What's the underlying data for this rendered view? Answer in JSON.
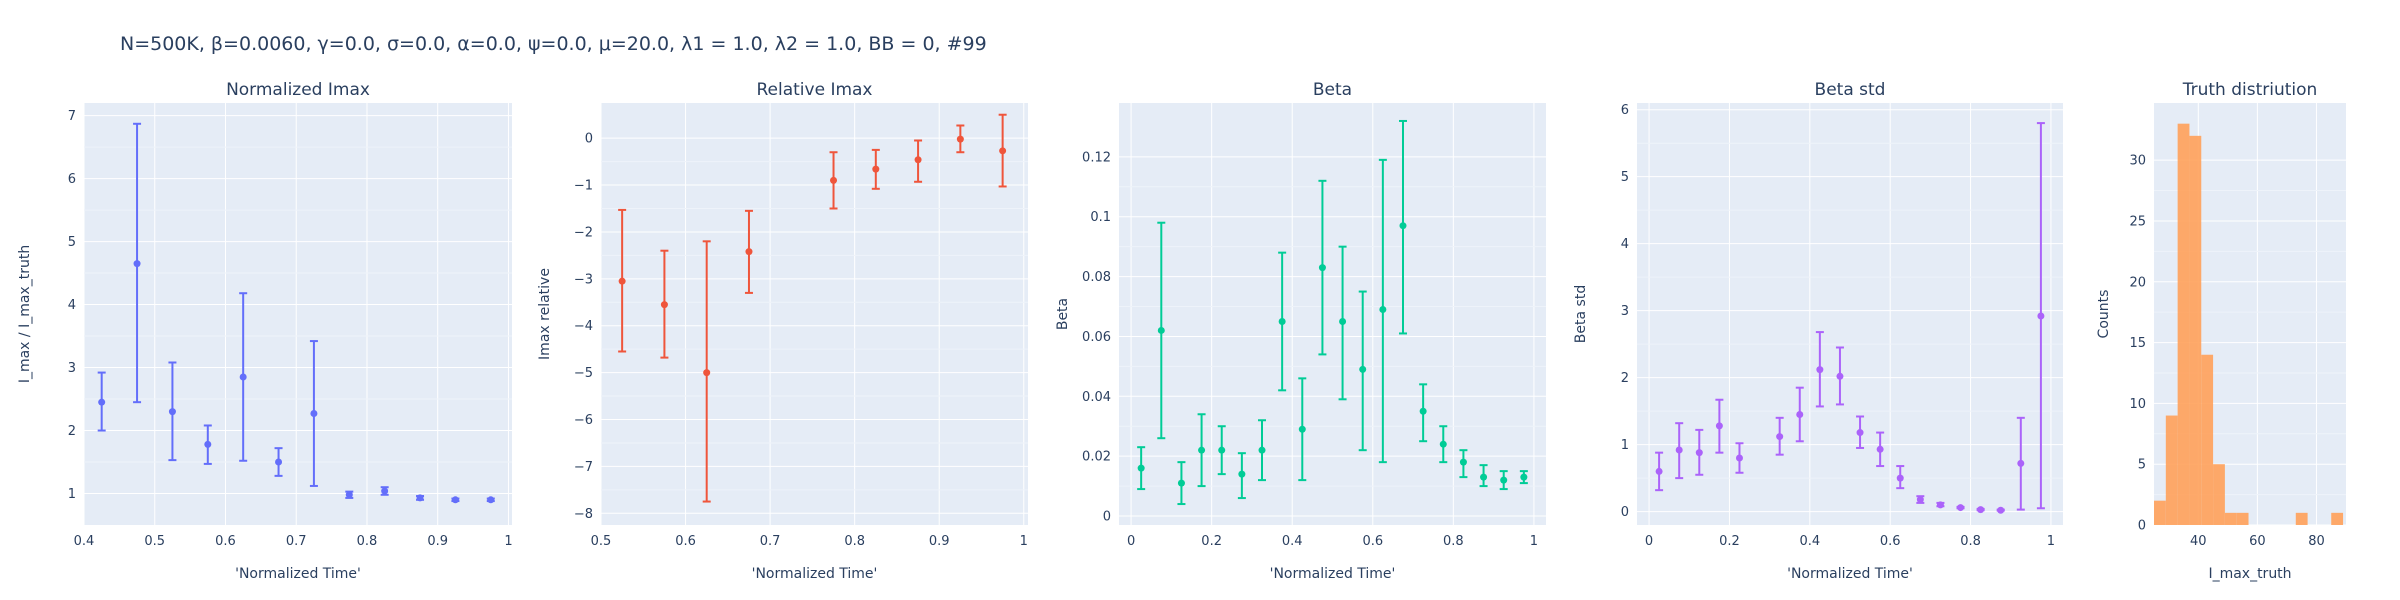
{
  "figure_title": "N=500K, β=0.0060, γ=0.0, σ=0.0,  α=0.0, ψ=0.0, μ=20.0, λ1 = 1.0, λ2 = 1.0, BB = 0, #99",
  "chart_data": [
    {
      "type": "scatter",
      "title": "Normalized Imax",
      "xlabel": "'Normalized Time'",
      "ylabel": "I_max / I_max_truth",
      "color": "#636efa",
      "xlim": [
        0.4,
        1.005
      ],
      "ylim": [
        0.5,
        7.2
      ],
      "xticks": [
        0.4,
        0.5,
        0.6,
        0.7,
        0.8,
        0.9,
        1
      ],
      "xtick_labels": [
        "0.4",
        "0.5",
        "0.6",
        "0.7",
        "0.8",
        "0.9",
        "1"
      ],
      "yticks": [
        1,
        2,
        3,
        4,
        5,
        6,
        7
      ],
      "ytick_labels": [
        "1",
        "2",
        "3",
        "4",
        "5",
        "6",
        "7"
      ],
      "grid": true,
      "points": [
        {
          "x": 0.425,
          "y": 2.45,
          "lo": 2.0,
          "hi": 2.92
        },
        {
          "x": 0.475,
          "y": 4.65,
          "lo": 2.45,
          "hi": 6.87
        },
        {
          "x": 0.525,
          "y": 2.3,
          "lo": 1.53,
          "hi": 3.08
        },
        {
          "x": 0.575,
          "y": 1.78,
          "lo": 1.47,
          "hi": 2.08
        },
        {
          "x": 0.625,
          "y": 2.85,
          "lo": 1.52,
          "hi": 4.18
        },
        {
          "x": 0.675,
          "y": 1.5,
          "lo": 1.28,
          "hi": 1.72
        },
        {
          "x": 0.725,
          "y": 2.27,
          "lo": 1.12,
          "hi": 3.42
        },
        {
          "x": 0.775,
          "y": 0.98,
          "lo": 0.93,
          "hi": 1.03
        },
        {
          "x": 0.825,
          "y": 1.04,
          "lo": 0.98,
          "hi": 1.1
        },
        {
          "x": 0.875,
          "y": 0.93,
          "lo": 0.9,
          "hi": 0.96
        },
        {
          "x": 0.925,
          "y": 0.9,
          "lo": 0.88,
          "hi": 0.92
        },
        {
          "x": 0.975,
          "y": 0.9,
          "lo": 0.88,
          "hi": 0.92
        }
      ]
    },
    {
      "type": "scatter",
      "title": "Relative Imax",
      "xlabel": "'Normalized Time'",
      "ylabel": "Imax relative",
      "color": "#ef553b",
      "xlim": [
        0.5,
        1.005
      ],
      "ylim": [
        -8.25,
        0.75
      ],
      "xticks": [
        0.5,
        0.6,
        0.7,
        0.8,
        0.9,
        1
      ],
      "xtick_labels": [
        "0.5",
        "0.6",
        "0.7",
        "0.8",
        "0.9",
        "1"
      ],
      "yticks": [
        -8,
        -7,
        -6,
        -5,
        -4,
        -3,
        -2,
        -1,
        0
      ],
      "ytick_labels": [
        "−8",
        "−7",
        "−6",
        "−5",
        "−4",
        "−3",
        "−2",
        "−1",
        "0"
      ],
      "grid": true,
      "points": [
        {
          "x": 0.525,
          "y": -3.05,
          "lo": -4.55,
          "hi": -1.53
        },
        {
          "x": 0.575,
          "y": -3.55,
          "lo": -4.68,
          "hi": -2.4
        },
        {
          "x": 0.625,
          "y": -5.0,
          "lo": -7.75,
          "hi": -2.2
        },
        {
          "x": 0.675,
          "y": -2.42,
          "lo": -3.3,
          "hi": -1.55
        },
        {
          "x": 0.775,
          "y": -0.9,
          "lo": -1.5,
          "hi": -0.3
        },
        {
          "x": 0.825,
          "y": -0.66,
          "lo": -1.08,
          "hi": -0.25
        },
        {
          "x": 0.875,
          "y": -0.46,
          "lo": -0.93,
          "hi": -0.05
        },
        {
          "x": 0.925,
          "y": -0.02,
          "lo": -0.3,
          "hi": 0.27
        },
        {
          "x": 0.975,
          "y": -0.27,
          "lo": -1.03,
          "hi": 0.5
        }
      ]
    },
    {
      "type": "scatter",
      "title": "Beta",
      "xlabel": "'Normalized Time'",
      "ylabel": "Beta",
      "color": "#00cc96",
      "xlim": [
        -0.03,
        1.03
      ],
      "ylim": [
        -0.003,
        0.138
      ],
      "xticks": [
        0,
        0.2,
        0.4,
        0.6,
        0.8,
        1
      ],
      "xtick_labels": [
        "0",
        "0.2",
        "0.4",
        "0.6",
        "0.8",
        "1"
      ],
      "yticks": [
        0,
        0.02,
        0.04,
        0.06,
        0.08,
        0.1,
        0.12
      ],
      "ytick_labels": [
        "0",
        "0.02",
        "0.04",
        "0.06",
        "0.08",
        "0.1",
        "0.12"
      ],
      "grid": true,
      "points": [
        {
          "x": 0.025,
          "y": 0.016,
          "lo": 0.009,
          "hi": 0.023
        },
        {
          "x": 0.075,
          "y": 0.062,
          "lo": 0.026,
          "hi": 0.098
        },
        {
          "x": 0.125,
          "y": 0.011,
          "lo": 0.004,
          "hi": 0.018
        },
        {
          "x": 0.175,
          "y": 0.022,
          "lo": 0.01,
          "hi": 0.034
        },
        {
          "x": 0.225,
          "y": 0.022,
          "lo": 0.014,
          "hi": 0.03
        },
        {
          "x": 0.275,
          "y": 0.014,
          "lo": 0.006,
          "hi": 0.021
        },
        {
          "x": 0.325,
          "y": 0.022,
          "lo": 0.012,
          "hi": 0.032
        },
        {
          "x": 0.375,
          "y": 0.065,
          "lo": 0.042,
          "hi": 0.088
        },
        {
          "x": 0.425,
          "y": 0.029,
          "lo": 0.012,
          "hi": 0.046
        },
        {
          "x": 0.475,
          "y": 0.083,
          "lo": 0.054,
          "hi": 0.112
        },
        {
          "x": 0.525,
          "y": 0.065,
          "lo": 0.039,
          "hi": 0.09
        },
        {
          "x": 0.575,
          "y": 0.049,
          "lo": 0.022,
          "hi": 0.075
        },
        {
          "x": 0.625,
          "y": 0.069,
          "lo": 0.018,
          "hi": 0.119
        },
        {
          "x": 0.675,
          "y": 0.097,
          "lo": 0.061,
          "hi": 0.132
        },
        {
          "x": 0.725,
          "y": 0.035,
          "lo": 0.025,
          "hi": 0.044
        },
        {
          "x": 0.775,
          "y": 0.024,
          "lo": 0.018,
          "hi": 0.03
        },
        {
          "x": 0.825,
          "y": 0.018,
          "lo": 0.013,
          "hi": 0.022
        },
        {
          "x": 0.875,
          "y": 0.013,
          "lo": 0.01,
          "hi": 0.017
        },
        {
          "x": 0.925,
          "y": 0.012,
          "lo": 0.009,
          "hi": 0.015
        },
        {
          "x": 0.975,
          "y": 0.013,
          "lo": 0.011,
          "hi": 0.015
        }
      ]
    },
    {
      "type": "scatter",
      "title": "Beta std",
      "xlabel": "'Normalized Time'",
      "ylabel": "Beta std",
      "color": "#ab63fa",
      "xlim": [
        -0.03,
        1.03
      ],
      "ylim": [
        -0.2,
        6.1
      ],
      "xticks": [
        0,
        0.2,
        0.4,
        0.6,
        0.8,
        1
      ],
      "xtick_labels": [
        "0",
        "0.2",
        "0.4",
        "0.6",
        "0.8",
        "1"
      ],
      "yticks": [
        0,
        1,
        2,
        3,
        4,
        5,
        6
      ],
      "ytick_labels": [
        "0",
        "1",
        "2",
        "3",
        "4",
        "5",
        "6"
      ],
      "grid": true,
      "points": [
        {
          "x": 0.025,
          "y": 0.6,
          "lo": 0.32,
          "hi": 0.88
        },
        {
          "x": 0.075,
          "y": 0.92,
          "lo": 0.5,
          "hi": 1.32
        },
        {
          "x": 0.125,
          "y": 0.88,
          "lo": 0.55,
          "hi": 1.22
        },
        {
          "x": 0.175,
          "y": 1.28,
          "lo": 0.88,
          "hi": 1.67
        },
        {
          "x": 0.225,
          "y": 0.8,
          "lo": 0.58,
          "hi": 1.02
        },
        {
          "x": 0.325,
          "y": 1.12,
          "lo": 0.85,
          "hi": 1.4
        },
        {
          "x": 0.375,
          "y": 1.45,
          "lo": 1.05,
          "hi": 1.85
        },
        {
          "x": 0.425,
          "y": 2.12,
          "lo": 1.57,
          "hi": 2.68
        },
        {
          "x": 0.475,
          "y": 2.02,
          "lo": 1.6,
          "hi": 2.45
        },
        {
          "x": 0.525,
          "y": 1.18,
          "lo": 0.95,
          "hi": 1.42
        },
        {
          "x": 0.575,
          "y": 0.93,
          "lo": 0.68,
          "hi": 1.18
        },
        {
          "x": 0.625,
          "y": 0.5,
          "lo": 0.35,
          "hi": 0.68
        },
        {
          "x": 0.675,
          "y": 0.18,
          "lo": 0.13,
          "hi": 0.23
        },
        {
          "x": 0.725,
          "y": 0.1,
          "lo": 0.08,
          "hi": 0.13
        },
        {
          "x": 0.775,
          "y": 0.06,
          "lo": 0.05,
          "hi": 0.07
        },
        {
          "x": 0.825,
          "y": 0.03,
          "lo": 0.02,
          "hi": 0.04
        },
        {
          "x": 0.875,
          "y": 0.02,
          "lo": 0.015,
          "hi": 0.03
        },
        {
          "x": 0.925,
          "y": 0.72,
          "lo": 0.03,
          "hi": 1.4
        },
        {
          "x": 0.975,
          "y": 2.92,
          "lo": 0.05,
          "hi": 5.8
        }
      ]
    },
    {
      "type": "bar",
      "title": "Truth distriution",
      "xlabel": "I_max_truth",
      "ylabel": "Counts",
      "color": "#ffa15a",
      "xlim": [
        25,
        90
      ],
      "ylim": [
        0,
        34.7
      ],
      "xticks": [
        40,
        60,
        80
      ],
      "xtick_labels": [
        "40",
        "60",
        "80"
      ],
      "yticks": [
        0,
        5,
        10,
        15,
        20,
        25,
        30
      ],
      "ytick_labels": [
        "0",
        "5",
        "10",
        "15",
        "20",
        "25",
        "30"
      ],
      "grid": true,
      "bin_edges": [
        25,
        29,
        33,
        37,
        41,
        45,
        49,
        53,
        57,
        61,
        65,
        69,
        73,
        77,
        81,
        85,
        89
      ],
      "counts": [
        2,
        9,
        33,
        32,
        14,
        5,
        1,
        1,
        0,
        0,
        0,
        0,
        1,
        0,
        0,
        1
      ]
    }
  ]
}
